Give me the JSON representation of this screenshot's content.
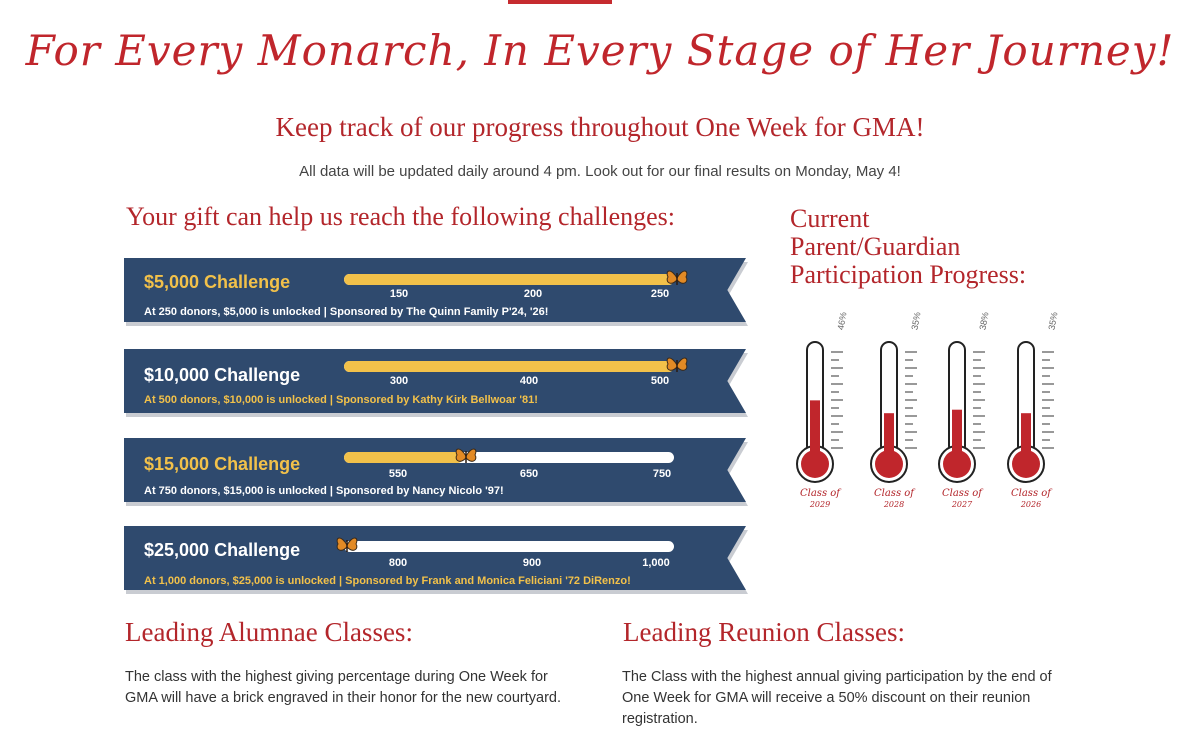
{
  "header": {
    "script_title": "For Every Monarch, In Every Stage of Her Journey!",
    "subtitle": "Keep track of our progress throughout One Week for GMA!",
    "note": "All data will be updated daily around 4 pm. Look out for our final results on Monday, May 4!"
  },
  "challenges_section": {
    "heading": "Your gift can help us reach the following challenges:",
    "items": [
      {
        "title": "$5,000 Challenge",
        "title_color": "#f2c14a",
        "desc": "At 250 donors, $5,000 is unlocked | Sponsored by The Quinn Family P'24, '26!",
        "desc_color": "#ffffff",
        "ticks": [
          "150",
          "200",
          "250"
        ],
        "progress": 1.0
      },
      {
        "title": "$10,000 Challenge",
        "title_color": "#ffffff",
        "desc": "At 500 donors, $10,000 is unlocked | Sponsored by Kathy Kirk Bellwoar '81!",
        "desc_color": "#f2c14a",
        "ticks": [
          "300",
          "400",
          "500"
        ],
        "progress": 1.0
      },
      {
        "title": "$15,000 Challenge",
        "title_color": "#f2c14a",
        "desc": "At 750 donors, $15,000 is unlocked | Sponsored by Nancy Nicolo '97!",
        "desc_color": "#ffffff",
        "ticks": [
          "550",
          "650",
          "750"
        ],
        "progress": 0.36
      },
      {
        "title": "$25,000 Challenge",
        "title_color": "#ffffff",
        "desc": "At 1,000 donors, $25,000 is unlocked | Sponsored by Frank and Monica Feliciani '72 DiRenzo!",
        "desc_color": "#f2c14a",
        "ticks": [
          "800",
          "900",
          "1,000"
        ],
        "progress": 0.0
      }
    ]
  },
  "participation": {
    "heading_line1": "Current",
    "heading_line2": "Parent/Guardian",
    "heading_line3": "Participation Progress:",
    "thermometers": [
      {
        "value_label": "46%",
        "class_label": "Class of",
        "year": "2029",
        "level": 0.46
      },
      {
        "value_label": "35%",
        "class_label": "Class of",
        "year": "2028",
        "level": 0.35
      },
      {
        "value_label": "38%",
        "class_label": "Class of",
        "year": "2027",
        "level": 0.38
      },
      {
        "value_label": "35%",
        "class_label": "Class of",
        "year": "2026",
        "level": 0.35
      }
    ]
  },
  "alumnae": {
    "heading": "Leading Alumnae Classes:",
    "text": "The class with the highest giving percentage during One Week for GMA will have a brick engraved in their honor for the new courtyard."
  },
  "reunion": {
    "heading": "Leading Reunion Classes:",
    "text": "The Class with the highest annual giving participation by the end of One Week for GMA will receive a 50% discount on their reunion registration."
  },
  "colors": {
    "accent_red": "#b3262b",
    "banner_navy": "#2f4a6e",
    "gold": "#f2c14a",
    "thermo_red": "#c0262c"
  }
}
